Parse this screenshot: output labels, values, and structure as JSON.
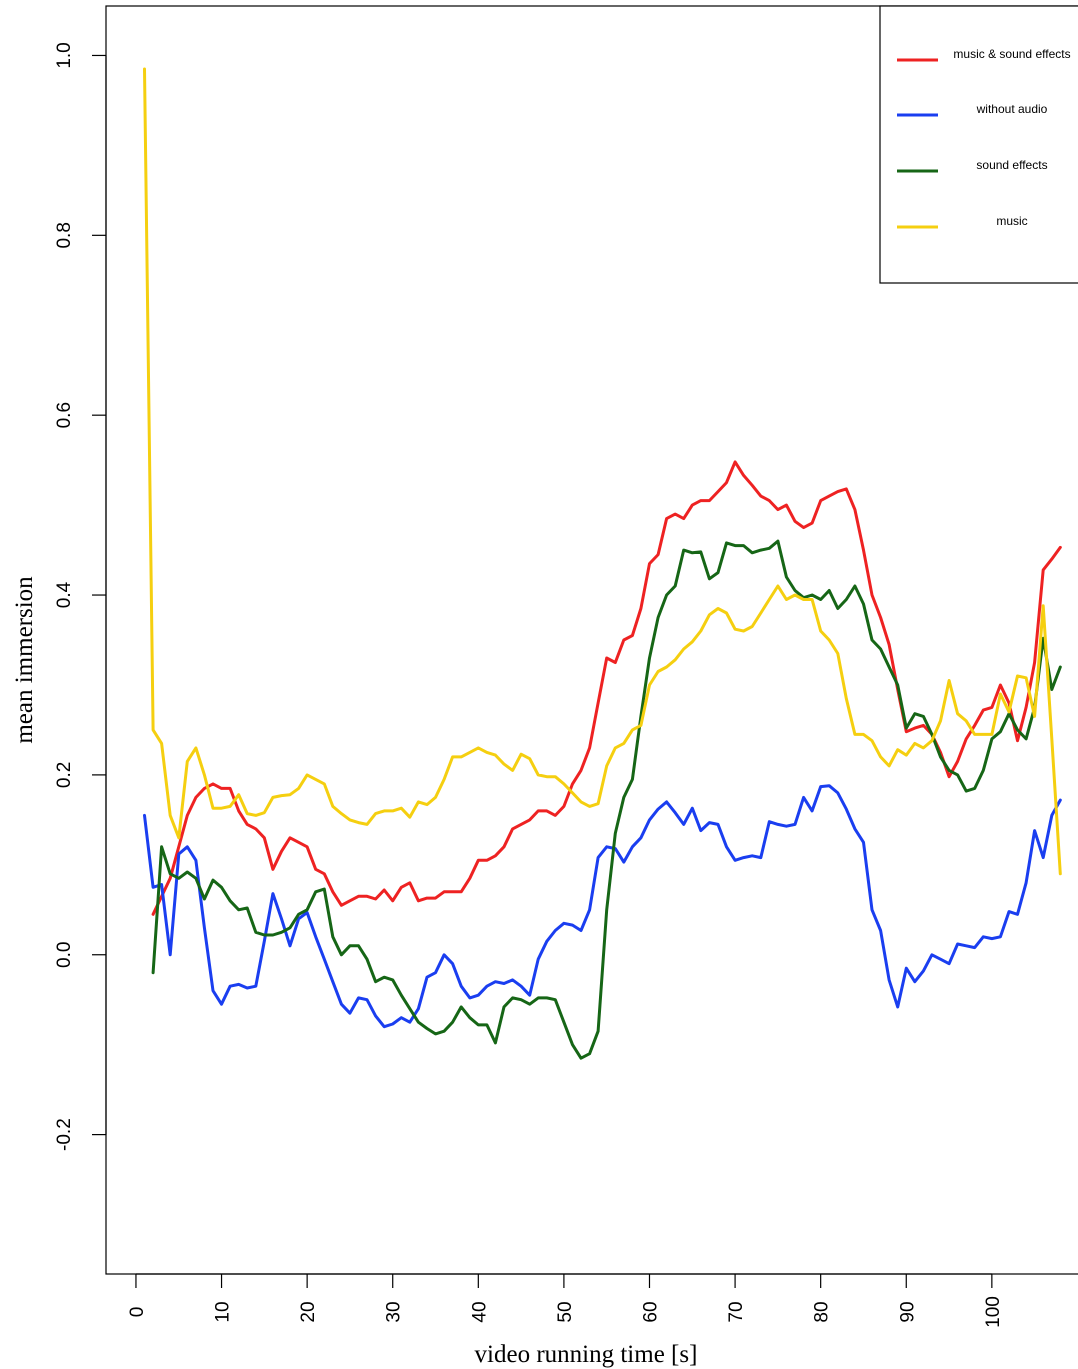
{
  "chart_data": {
    "type": "line",
    "title": "",
    "xlabel": "video running time [s]",
    "ylabel": "mean immersion",
    "xlim": [
      -3.5,
      111
    ],
    "ylim": [
      -0.355,
      1.055
    ],
    "xticks": [
      0,
      10,
      20,
      30,
      40,
      50,
      60,
      70,
      80,
      90,
      100
    ],
    "xtick_labels": [
      "0",
      "10",
      "20",
      "30",
      "40",
      "50",
      "60",
      "70",
      "80",
      "90",
      "100"
    ],
    "yticks": [
      -0.2,
      0.0,
      0.2,
      0.4,
      0.6,
      0.8,
      1.0
    ],
    "ytick_labels": [
      "-0.2",
      "0.0",
      "0.2",
      "0.4",
      "0.6",
      "0.8",
      "1.0"
    ],
    "grid": false,
    "legend_position": "top-right",
    "series": [
      {
        "name": "music & sound effects",
        "color": "#ee2222",
        "x": [
          2,
          4,
          6,
          7,
          8,
          9,
          10,
          11,
          12,
          13,
          14,
          15,
          16,
          17,
          18,
          19,
          20,
          21,
          22,
          23,
          24,
          25,
          26,
          27,
          28,
          29,
          30,
          31,
          32,
          33,
          34,
          35,
          36,
          37,
          38,
          39,
          40,
          41,
          42,
          43,
          44,
          45,
          46,
          47,
          48,
          49,
          50,
          51,
          52,
          53,
          54,
          55,
          56,
          57,
          58,
          59,
          60,
          61,
          62,
          63,
          64,
          65,
          66,
          67,
          68,
          69,
          70,
          71,
          72,
          73,
          74,
          75,
          76,
          77,
          78,
          79,
          80,
          81,
          82,
          83,
          84,
          85,
          86,
          87,
          88,
          89,
          90,
          91,
          92,
          93,
          94,
          95,
          96,
          97,
          98,
          99,
          100,
          101,
          102,
          103,
          104,
          105,
          106,
          107,
          108
        ],
        "y": [
          0.045,
          0.085,
          0.155,
          0.175,
          0.185,
          0.19,
          0.185,
          0.185,
          0.16,
          0.145,
          0.14,
          0.13,
          0.095,
          0.115,
          0.13,
          0.125,
          0.12,
          0.095,
          0.09,
          0.07,
          0.055,
          0.06,
          0.065,
          0.065,
          0.062,
          0.072,
          0.06,
          0.075,
          0.08,
          0.06,
          0.063,
          0.063,
          0.07,
          0.07,
          0.07,
          0.085,
          0.105,
          0.105,
          0.11,
          0.12,
          0.14,
          0.145,
          0.15,
          0.16,
          0.16,
          0.155,
          0.165,
          0.19,
          0.205,
          0.23,
          0.28,
          0.33,
          0.325,
          0.35,
          0.355,
          0.385,
          0.435,
          0.445,
          0.485,
          0.49,
          0.485,
          0.5,
          0.505,
          0.505,
          0.515,
          0.525,
          0.548,
          0.533,
          0.522,
          0.51,
          0.505,
          0.495,
          0.5,
          0.482,
          0.475,
          0.48,
          0.505,
          0.51,
          0.515,
          0.518,
          0.495,
          0.45,
          0.4,
          0.375,
          0.345,
          0.295,
          0.248,
          0.252,
          0.255,
          0.245,
          0.225,
          0.198,
          0.215,
          0.24,
          0.255,
          0.272,
          0.275,
          0.3,
          0.28,
          0.238,
          0.275,
          0.325,
          0.428,
          0.44,
          0.453
        ]
      },
      {
        "name": "without audio",
        "color": "#1a3ef0",
        "x": [
          1,
          2,
          3,
          4,
          5,
          6,
          7,
          8,
          9,
          10,
          11,
          12,
          13,
          14,
          15,
          16,
          17,
          18,
          19,
          20,
          21,
          22,
          23,
          24,
          25,
          26,
          27,
          28,
          29,
          30,
          31,
          32,
          33,
          34,
          35,
          36,
          37,
          38,
          39,
          40,
          41,
          42,
          43,
          44,
          45,
          46,
          47,
          48,
          49,
          50,
          51,
          52,
          53,
          54,
          55,
          56,
          57,
          58,
          59,
          60,
          61,
          62,
          63,
          64,
          65,
          66,
          67,
          68,
          69,
          70,
          71,
          72,
          73,
          74,
          75,
          76,
          77,
          78,
          79,
          80,
          81,
          82,
          83,
          84,
          85,
          86,
          87,
          88,
          89,
          90,
          91,
          92,
          93,
          94,
          95,
          96,
          97,
          98,
          99,
          100,
          101,
          102,
          103,
          104,
          105,
          106,
          107,
          108
        ],
        "y": [
          0.155,
          0.075,
          0.078,
          0.0,
          0.112,
          0.12,
          0.105,
          0.03,
          -0.04,
          -0.055,
          -0.035,
          -0.033,
          -0.037,
          -0.035,
          0.015,
          0.068,
          0.04,
          0.01,
          0.04,
          0.047,
          0.02,
          -0.005,
          -0.03,
          -0.055,
          -0.065,
          -0.048,
          -0.05,
          -0.068,
          -0.08,
          -0.077,
          -0.07,
          -0.075,
          -0.06,
          -0.025,
          -0.02,
          0.0,
          -0.01,
          -0.035,
          -0.048,
          -0.045,
          -0.035,
          -0.03,
          -0.032,
          -0.028,
          -0.035,
          -0.045,
          -0.005,
          0.015,
          0.027,
          0.035,
          0.033,
          0.027,
          0.05,
          0.108,
          0.12,
          0.118,
          0.103,
          0.12,
          0.13,
          0.15,
          0.162,
          0.17,
          0.158,
          0.145,
          0.163,
          0.138,
          0.147,
          0.145,
          0.12,
          0.105,
          0.108,
          0.11,
          0.108,
          0.148,
          0.145,
          0.143,
          0.145,
          0.175,
          0.16,
          0.187,
          0.188,
          0.18,
          0.162,
          0.14,
          0.125,
          0.05,
          0.027,
          -0.028,
          -0.058,
          -0.015,
          -0.03,
          -0.018,
          0.0,
          -0.005,
          -0.01,
          0.012,
          0.01,
          0.008,
          0.02,
          0.018,
          0.02,
          0.048,
          0.045,
          0.08,
          0.138,
          0.108,
          0.155,
          0.172
        ]
      },
      {
        "name": "sound effects",
        "color": "#166616",
        "x": [
          2,
          3,
          4,
          5,
          6,
          7,
          8,
          9,
          10,
          11,
          12,
          13,
          14,
          15,
          16,
          17,
          18,
          19,
          20,
          21,
          22,
          23,
          24,
          25,
          26,
          27,
          28,
          29,
          30,
          31,
          32,
          33,
          34,
          35,
          36,
          37,
          38,
          39,
          40,
          41,
          42,
          43,
          44,
          45,
          46,
          47,
          48,
          49,
          50,
          51,
          52,
          53,
          54,
          55,
          56,
          57,
          58,
          59,
          60,
          61,
          62,
          63,
          64,
          65,
          66,
          67,
          68,
          69,
          70,
          71,
          72,
          73,
          74,
          75,
          76,
          77,
          78,
          79,
          80,
          81,
          82,
          83,
          84,
          85,
          86,
          87,
          88,
          89,
          90,
          91,
          92,
          93,
          94,
          95,
          96,
          97,
          98,
          99,
          100,
          101,
          102,
          103,
          104,
          105,
          106,
          107,
          108
        ],
        "y": [
          -0.02,
          0.12,
          0.09,
          0.085,
          0.092,
          0.085,
          0.062,
          0.083,
          0.075,
          0.06,
          0.05,
          0.052,
          0.025,
          0.022,
          0.022,
          0.025,
          0.03,
          0.045,
          0.05,
          0.07,
          0.073,
          0.02,
          0.0,
          0.01,
          0.01,
          -0.005,
          -0.03,
          -0.025,
          -0.028,
          -0.045,
          -0.06,
          -0.075,
          -0.082,
          -0.088,
          -0.085,
          -0.075,
          -0.058,
          -0.07,
          -0.078,
          -0.078,
          -0.098,
          -0.058,
          -0.048,
          -0.05,
          -0.055,
          -0.048,
          -0.048,
          -0.05,
          -0.075,
          -0.1,
          -0.115,
          -0.11,
          -0.085,
          0.05,
          0.135,
          0.175,
          0.195,
          0.265,
          0.33,
          0.375,
          0.4,
          0.41,
          0.45,
          0.447,
          0.448,
          0.418,
          0.425,
          0.458,
          0.455,
          0.455,
          0.447,
          0.45,
          0.452,
          0.46,
          0.42,
          0.405,
          0.397,
          0.4,
          0.395,
          0.405,
          0.385,
          0.395,
          0.41,
          0.39,
          0.35,
          0.34,
          0.32,
          0.3,
          0.252,
          0.268,
          0.265,
          0.245,
          0.22,
          0.205,
          0.2,
          0.182,
          0.185,
          0.205,
          0.24,
          0.248,
          0.268,
          0.25,
          0.24,
          0.275,
          0.352,
          0.295,
          0.32
        ]
      },
      {
        "name": "music",
        "color": "#f5cf10",
        "x": [
          1,
          2,
          3,
          4,
          5,
          6,
          7,
          8,
          9,
          10,
          11,
          12,
          13,
          14,
          15,
          16,
          17,
          18,
          19,
          20,
          21,
          22,
          23,
          24,
          25,
          26,
          27,
          28,
          29,
          30,
          31,
          32,
          33,
          34,
          35,
          36,
          37,
          38,
          39,
          40,
          41,
          42,
          43,
          44,
          45,
          46,
          47,
          48,
          49,
          50,
          51,
          52,
          53,
          54,
          55,
          56,
          57,
          58,
          59,
          60,
          61,
          62,
          63,
          64,
          65,
          66,
          67,
          68,
          69,
          70,
          71,
          72,
          73,
          74,
          75,
          76,
          77,
          78,
          79,
          80,
          81,
          82,
          83,
          84,
          85,
          86,
          87,
          88,
          89,
          90,
          91,
          92,
          93,
          94,
          95,
          96,
          97,
          98,
          99,
          100,
          101,
          102,
          103,
          104,
          105,
          106,
          107,
          108
        ],
        "y": [
          0.985,
          0.25,
          0.235,
          0.155,
          0.13,
          0.215,
          0.23,
          0.2,
          0.163,
          0.163,
          0.165,
          0.178,
          0.157,
          0.155,
          0.158,
          0.175,
          0.177,
          0.178,
          0.185,
          0.2,
          0.195,
          0.19,
          0.165,
          0.157,
          0.15,
          0.147,
          0.145,
          0.157,
          0.16,
          0.16,
          0.163,
          0.153,
          0.17,
          0.167,
          0.175,
          0.195,
          0.22,
          0.22,
          0.225,
          0.23,
          0.225,
          0.222,
          0.212,
          0.205,
          0.223,
          0.218,
          0.2,
          0.198,
          0.198,
          0.19,
          0.18,
          0.17,
          0.165,
          0.168,
          0.21,
          0.23,
          0.235,
          0.25,
          0.255,
          0.3,
          0.315,
          0.32,
          0.328,
          0.34,
          0.348,
          0.36,
          0.378,
          0.385,
          0.38,
          0.362,
          0.36,
          0.365,
          0.38,
          0.395,
          0.41,
          0.395,
          0.4,
          0.395,
          0.395,
          0.36,
          0.35,
          0.335,
          0.285,
          0.245,
          0.245,
          0.238,
          0.22,
          0.21,
          0.228,
          0.222,
          0.235,
          0.23,
          0.238,
          0.26,
          0.305,
          0.268,
          0.26,
          0.245,
          0.245,
          0.245,
          0.29,
          0.27,
          0.31,
          0.308,
          0.265,
          0.388,
          0.24,
          0.09
        ]
      }
    ]
  }
}
